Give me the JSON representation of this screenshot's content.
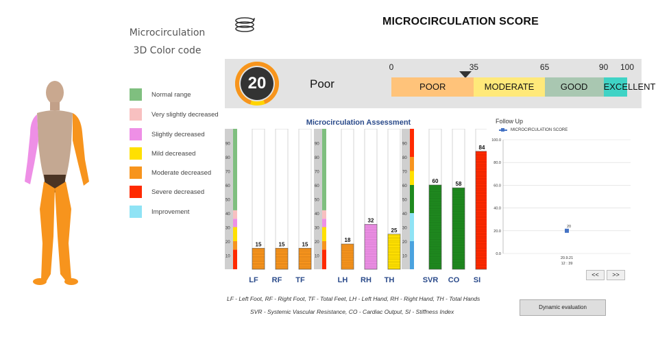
{
  "color_code": {
    "title_line1": "Microcirculation",
    "title_line2": "3D Color code",
    "items": [
      {
        "label": "Normal range",
        "color": "#7fbf7f"
      },
      {
        "label": "Very slightly decreased",
        "color": "#f8c0c0"
      },
      {
        "label": "Slightly decreased",
        "color": "#ee8fe6"
      },
      {
        "label": "Mild decreased",
        "color": "#ffe000"
      },
      {
        "label": "Moderate decreased",
        "color": "#f7941d"
      },
      {
        "label": "Severe decreased",
        "color": "#ff2a00"
      },
      {
        "label": "Improvement",
        "color": "#8fe3f5"
      }
    ]
  },
  "header": {
    "title": "MICROCIRCULATION SCORE"
  },
  "score": {
    "value": "20",
    "rating": "Poor",
    "ticks": [
      "0",
      "35",
      "65",
      "90",
      "100"
    ],
    "segments": [
      {
        "label": "POOR",
        "color": "#ffc37a"
      },
      {
        "label": "MODERATE",
        "color": "#ffe97a"
      },
      {
        "label": "GOOD",
        "color": "#a9c7b1"
      },
      {
        "label": "EXCELLENT",
        "color": "#3fd3c5"
      }
    ]
  },
  "assessment": {
    "title": "Microcirculation Assessment",
    "axis_ticks": [
      "10",
      "20",
      "30",
      "40",
      "50",
      "60",
      "70",
      "80",
      "90"
    ],
    "groups": [
      {
        "bars": [
          {
            "label": "LF",
            "value": 15,
            "color": "#f7941d"
          },
          {
            "label": "RF",
            "value": 15,
            "color": "#f7941d"
          },
          {
            "label": "TF",
            "value": 15,
            "color": "#f7941d"
          }
        ]
      },
      {
        "bars": [
          {
            "label": "LH",
            "value": 18,
            "color": "#f7941d"
          },
          {
            "label": "RH",
            "value": 32,
            "color": "#ee8fe6"
          },
          {
            "label": "TH",
            "value": 25,
            "color": "#ffe000"
          }
        ]
      },
      {
        "bars": [
          {
            "label": "SVR",
            "value": 60,
            "color": "#1f8a1f"
          },
          {
            "label": "CO",
            "value": 58,
            "color": "#1f8a1f"
          },
          {
            "label": "SI",
            "value": 84,
            "color": "#ff2a00"
          }
        ]
      }
    ],
    "notes_line1": "LF - Left Foot, RF - Right Foot, TF - Total Feet, LH - Left Hand, RH - Right Hand, TH - Total Hands",
    "notes_line2": "SVR - Systemic Vascular Resistance, CO - Cardiac Output, SI - Stiffness Index"
  },
  "follow_up": {
    "title": "Follow Up",
    "series_name": "MICROCIRCULATION SCORE",
    "y_ticks": [
      "0.0",
      "20.0",
      "40.0",
      "60.0",
      "80.0",
      "100.0"
    ],
    "ylim": [
      0,
      100
    ],
    "points": [
      {
        "date": "20.9.21",
        "time": "12 : 39",
        "value": 20
      }
    ],
    "prev_label": "<<",
    "next_label": ">>"
  },
  "dynamic_button": "Dynamic evaluation"
}
